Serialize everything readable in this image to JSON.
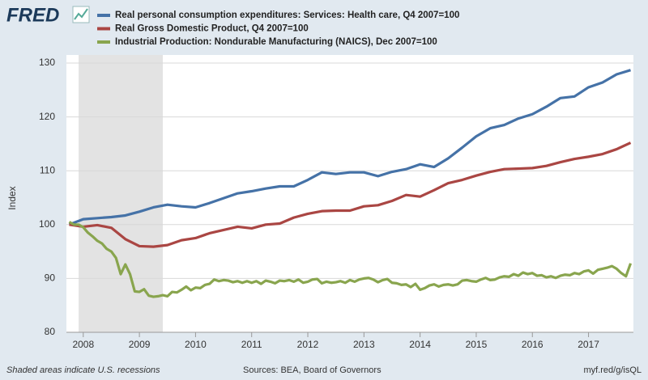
{
  "chart_data": {
    "type": "line",
    "logo": "FRED",
    "y_label": "Index",
    "footer_left": "Shaded areas indicate U.S. recessions",
    "footer_center": "Sources: BEA, Board of Governors",
    "footer_right": "myf.red/g/isQL",
    "xlim": [
      2007.7,
      2017.8
    ],
    "xticks": [
      2008,
      2009,
      2010,
      2011,
      2012,
      2013,
      2014,
      2015,
      2016,
      2017
    ],
    "ylim": [
      80,
      130
    ],
    "yticks": [
      80,
      90,
      100,
      110,
      120,
      130
    ],
    "grid": true,
    "recessions": [
      {
        "start": 2007.917,
        "end": 2009.417
      }
    ],
    "series": [
      {
        "name": "Real personal consumption expenditures: Services: Health care, Q4 2007=100",
        "color": "#4572a7",
        "x": [
          2007.75,
          2008,
          2008.25,
          2008.5,
          2008.75,
          2009,
          2009.25,
          2009.5,
          2009.75,
          2010,
          2010.25,
          2010.5,
          2010.75,
          2011,
          2011.25,
          2011.5,
          2011.75,
          2012,
          2012.25,
          2012.5,
          2012.75,
          2013,
          2013.25,
          2013.5,
          2013.75,
          2014,
          2014.25,
          2014.5,
          2014.75,
          2015,
          2015.25,
          2015.5,
          2015.75,
          2016,
          2016.25,
          2016.5,
          2016.75,
          2017,
          2017.25,
          2017.5,
          2017.75
        ],
        "values": [
          100,
          101.0,
          101.2,
          101.4,
          101.7,
          102.4,
          103.2,
          103.7,
          103.4,
          103.2,
          104.0,
          104.9,
          105.8,
          106.2,
          106.7,
          107.1,
          107.1,
          108.3,
          109.7,
          109.4,
          109.7,
          109.7,
          109.0,
          109.8,
          110.3,
          111.2,
          110.7,
          112.3,
          114.3,
          116.4,
          117.9,
          118.5,
          119.7,
          120.5,
          121.9,
          123.5,
          123.8,
          125.5,
          126.4,
          127.9,
          128.7
        ]
      },
      {
        "name": "Real Gross Domestic Product, Q4 2007=100",
        "color": "#aa4643",
        "x": [
          2007.75,
          2008,
          2008.25,
          2008.5,
          2008.75,
          2009,
          2009.25,
          2009.5,
          2009.75,
          2010,
          2010.25,
          2010.5,
          2010.75,
          2011,
          2011.25,
          2011.5,
          2011.75,
          2012,
          2012.25,
          2012.5,
          2012.75,
          2013,
          2013.25,
          2013.5,
          2013.75,
          2014,
          2014.25,
          2014.5,
          2014.75,
          2015,
          2015.25,
          2015.5,
          2015.75,
          2016,
          2016.25,
          2016.5,
          2016.75,
          2017,
          2017.25,
          2017.5,
          2017.75
        ],
        "values": [
          100,
          99.6,
          99.9,
          99.4,
          97.3,
          96.0,
          95.9,
          96.2,
          97.1,
          97.5,
          98.4,
          99.0,
          99.6,
          99.3,
          100.0,
          100.2,
          101.3,
          102.0,
          102.5,
          102.6,
          102.6,
          103.4,
          103.6,
          104.4,
          105.5,
          105.2,
          106.4,
          107.7,
          108.3,
          109.1,
          109.8,
          110.3,
          110.4,
          110.5,
          110.9,
          111.6,
          112.2,
          112.6,
          113.1,
          114.0,
          115.2
        ]
      },
      {
        "name": "Industrial Production: Nondurable Manufacturing (NAICS), Dec 2007=100",
        "color": "#89a54e",
        "x": [
          2007.75,
          2007.833,
          2007.917,
          2008,
          2008.083,
          2008.167,
          2008.25,
          2008.333,
          2008.417,
          2008.5,
          2008.583,
          2008.667,
          2008.75,
          2008.833,
          2008.917,
          2009,
          2009.083,
          2009.167,
          2009.25,
          2009.333,
          2009.417,
          2009.5,
          2009.583,
          2009.667,
          2009.75,
          2009.833,
          2009.917,
          2010,
          2010.083,
          2010.167,
          2010.25,
          2010.333,
          2010.417,
          2010.5,
          2010.583,
          2010.667,
          2010.75,
          2010.833,
          2010.917,
          2011,
          2011.083,
          2011.167,
          2011.25,
          2011.333,
          2011.417,
          2011.5,
          2011.583,
          2011.667,
          2011.75,
          2011.833,
          2011.917,
          2012,
          2012.083,
          2012.167,
          2012.25,
          2012.333,
          2012.417,
          2012.5,
          2012.583,
          2012.667,
          2012.75,
          2012.833,
          2012.917,
          2013,
          2013.083,
          2013.167,
          2013.25,
          2013.333,
          2013.417,
          2013.5,
          2013.583,
          2013.667,
          2013.75,
          2013.833,
          2013.917,
          2014,
          2014.083,
          2014.167,
          2014.25,
          2014.333,
          2014.417,
          2014.5,
          2014.583,
          2014.667,
          2014.75,
          2014.833,
          2014.917,
          2015,
          2015.083,
          2015.167,
          2015.25,
          2015.333,
          2015.417,
          2015.5,
          2015.583,
          2015.667,
          2015.75,
          2015.833,
          2015.917,
          2016,
          2016.083,
          2016.167,
          2016.25,
          2016.333,
          2016.417,
          2016.5,
          2016.583,
          2016.667,
          2016.75,
          2016.833,
          2016.917,
          2017,
          2017.083,
          2017.167,
          2017.25,
          2017.333,
          2017.417,
          2017.5,
          2017.583,
          2017.667,
          2017.75
        ],
        "values": [
          100.5,
          100.0,
          100.0,
          99.5,
          98.5,
          97.8,
          97.0,
          96.5,
          95.5,
          95.0,
          93.8,
          90.8,
          92.6,
          90.8,
          87.6,
          87.5,
          88.0,
          86.8,
          86.6,
          86.7,
          86.9,
          86.7,
          87.5,
          87.4,
          87.9,
          88.5,
          87.8,
          88.3,
          88.2,
          88.8,
          89.0,
          89.8,
          89.5,
          89.7,
          89.6,
          89.3,
          89.5,
          89.2,
          89.5,
          89.2,
          89.5,
          89.0,
          89.6,
          89.4,
          89.1,
          89.6,
          89.5,
          89.7,
          89.4,
          89.8,
          89.2,
          89.4,
          89.8,
          89.9,
          89.1,
          89.4,
          89.2,
          89.3,
          89.5,
          89.2,
          89.7,
          89.4,
          89.8,
          90.0,
          90.1,
          89.8,
          89.3,
          89.7,
          89.9,
          89.2,
          89.1,
          88.8,
          88.9,
          88.4,
          89.0,
          87.9,
          88.2,
          88.7,
          88.9,
          88.5,
          88.8,
          88.9,
          88.7,
          88.9,
          89.6,
          89.7,
          89.5,
          89.4,
          89.8,
          90.1,
          89.7,
          89.8,
          90.2,
          90.4,
          90.3,
          90.8,
          90.5,
          91.1,
          90.8,
          91.0,
          90.5,
          90.6,
          90.2,
          90.4,
          90.1,
          90.5,
          90.7,
          90.6,
          91.0,
          90.8,
          91.3,
          91.5,
          90.9,
          91.6,
          91.8,
          92.0,
          92.3,
          91.8,
          91.0,
          90.4,
          92.8
        ]
      }
    ]
  }
}
